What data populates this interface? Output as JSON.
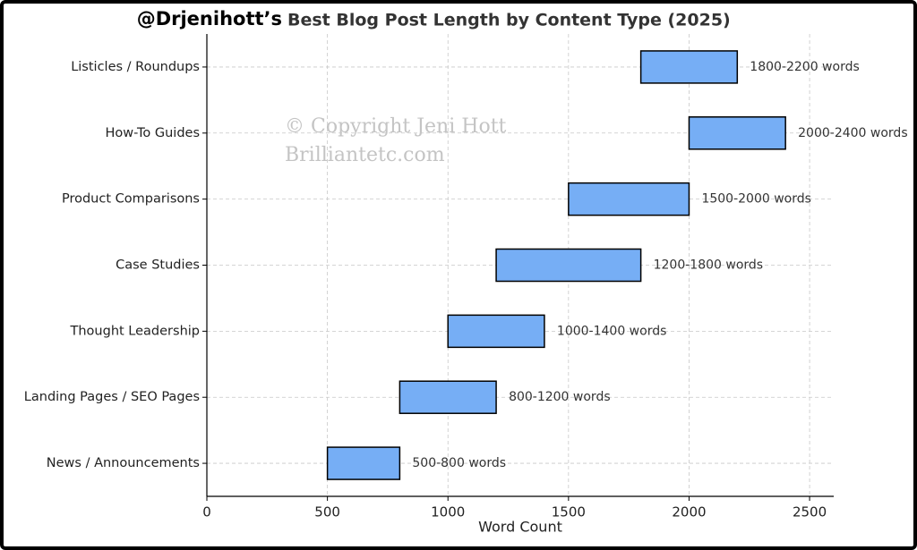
{
  "chart_data": {
    "type": "range-bar",
    "title_handle": "@Drjenihott’s",
    "title": "Best Blog Post Length by Content Type (2025)",
    "xlabel": "Word Count",
    "annotations": [
      "© Copyright Jeni Hott",
      "Brilliantetc.com"
    ],
    "categories": [
      "Listicles / Roundups",
      "How-To Guides",
      "Product Comparisons",
      "Case Studies",
      "Thought Leadership",
      "Landing Pages / SEO Pages",
      "News / Announcements"
    ],
    "starts": [
      1800,
      2000,
      1500,
      1200,
      1000,
      800,
      500
    ],
    "ends": [
      2200,
      2400,
      2000,
      1800,
      1400,
      1200,
      800
    ],
    "value_labels": [
      "1800-2200 words",
      "2000-2400 words",
      "1500-2000 words",
      "1200-1800 words",
      "1000-1400 words",
      "800-1200 words",
      "500-800 words"
    ],
    "color": "#76aef5",
    "xlim": [
      0,
      2600
    ],
    "xticks": [
      0,
      500,
      1000,
      1500,
      2000,
      2500
    ],
    "grid": true
  }
}
